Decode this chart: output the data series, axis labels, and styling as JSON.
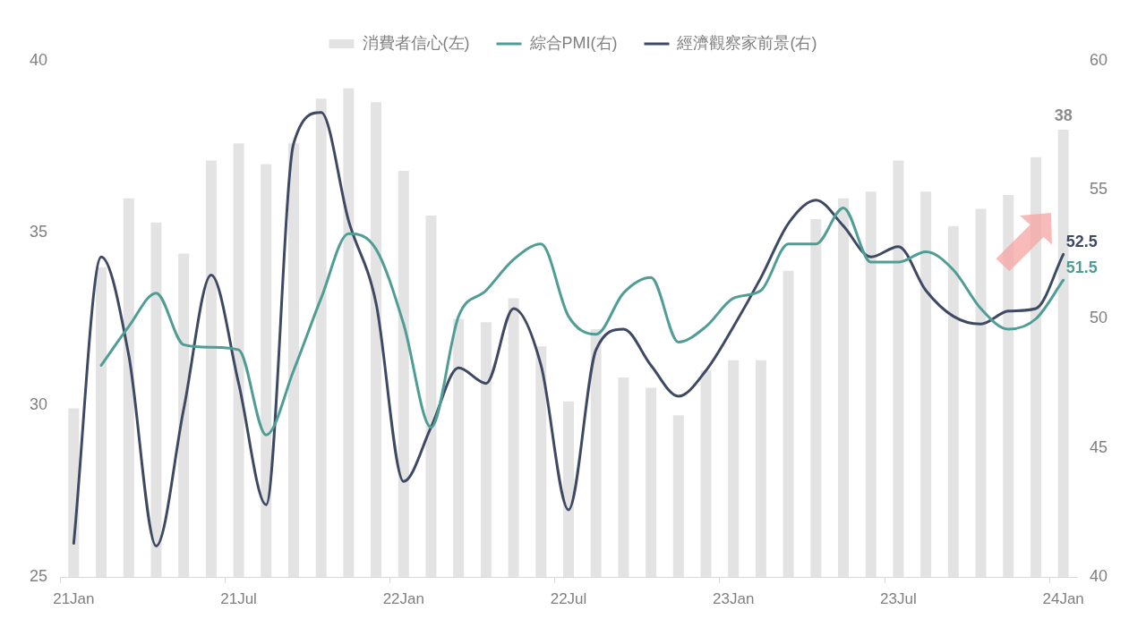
{
  "chart_data": {
    "type": "bar",
    "categories": [
      "21Jan",
      null,
      null,
      null,
      null,
      null,
      "21Jul",
      null,
      null,
      null,
      null,
      null,
      "22Jan",
      null,
      null,
      null,
      null,
      null,
      "22Jul",
      null,
      null,
      null,
      null,
      null,
      "23Jan",
      null,
      null,
      null,
      null,
      null,
      "23Jul",
      null,
      null,
      null,
      null,
      null,
      "24Jan"
    ],
    "series": [
      {
        "name": "消費者信心(左)",
        "color": "#e3e3e3",
        "values": [
          29.9,
          34.0,
          36.0,
          35.3,
          34.4,
          37.1,
          37.6,
          37.0,
          37.6,
          38.9,
          39.2,
          38.8,
          36.8,
          35.5,
          32.5,
          32.4,
          33.1,
          31.7,
          30.1,
          32.2,
          30.8,
          30.5,
          29.7,
          31.0,
          31.3,
          31.3,
          33.9,
          35.4,
          36.0,
          36.2,
          37.1,
          36.2,
          35.2,
          35.7,
          36.1,
          37.2,
          38.0
        ],
        "value_labels": [
          null,
          null,
          null,
          null,
          null,
          null,
          null,
          null,
          null,
          null,
          null,
          null,
          null,
          null,
          null,
          null,
          null,
          null,
          null,
          null,
          null,
          null,
          null,
          null,
          null,
          null,
          null,
          null,
          null,
          null,
          null,
          null,
          null,
          null,
          null,
          null,
          "38"
        ]
      },
      {
        "name": "綜合PMI(右)",
        "type": "line",
        "axis": "y2",
        "color": "#4f9d95",
        "values": [
          null,
          48.2,
          49.7,
          51.0,
          49.0,
          48.9,
          48.8,
          45.5,
          48.0,
          50.8,
          53.3,
          52.7,
          49.8,
          45.8,
          50.1,
          51.1,
          52.3,
          52.9,
          50.1,
          49.4,
          51.0,
          51.6,
          49.1,
          49.7,
          50.8,
          51.1,
          52.9,
          52.9,
          54.3,
          52.2,
          52.2,
          52.6,
          51.9,
          50.4,
          49.6,
          50.0,
          51.5
        ],
        "value_labels": [
          null,
          null,
          null,
          null,
          null,
          null,
          null,
          null,
          null,
          null,
          null,
          null,
          null,
          null,
          null,
          null,
          null,
          null,
          null,
          null,
          null,
          null,
          null,
          null,
          null,
          null,
          null,
          null,
          null,
          null,
          null,
          null,
          null,
          null,
          null,
          null,
          "51.5"
        ]
      },
      {
        "name": "經濟觀察家前景(右)",
        "type": "line",
        "axis": "y2",
        "color": "#3e4a63",
        "values": [
          41.3,
          52.4,
          48.6,
          41.2,
          46.5,
          51.7,
          47.5,
          42.8,
          56.8,
          58.0,
          53.8,
          50.6,
          43.7,
          45.8,
          48.1,
          47.5,
          50.4,
          48.2,
          42.6,
          48.8,
          49.6,
          48.2,
          47.0,
          48.0,
          49.7,
          51.6,
          53.7,
          54.6,
          53.6,
          52.4,
          52.8,
          51.1,
          50.1,
          49.8,
          50.3,
          50.4,
          52.5
        ],
        "value_labels": [
          null,
          null,
          null,
          null,
          null,
          null,
          null,
          null,
          null,
          null,
          null,
          null,
          null,
          null,
          null,
          null,
          null,
          null,
          null,
          null,
          null,
          null,
          null,
          null,
          null,
          null,
          null,
          null,
          null,
          null,
          null,
          null,
          null,
          null,
          null,
          null,
          "52.5"
        ]
      }
    ],
    "ylim": [
      25,
      40
    ],
    "yticks": [
      25,
      30,
      35,
      40
    ],
    "y2lim": [
      40,
      60
    ],
    "y2ticks": [
      40,
      45,
      50,
      55,
      60
    ],
    "legend": "top",
    "marker": "none",
    "line_style": "solid"
  }
}
